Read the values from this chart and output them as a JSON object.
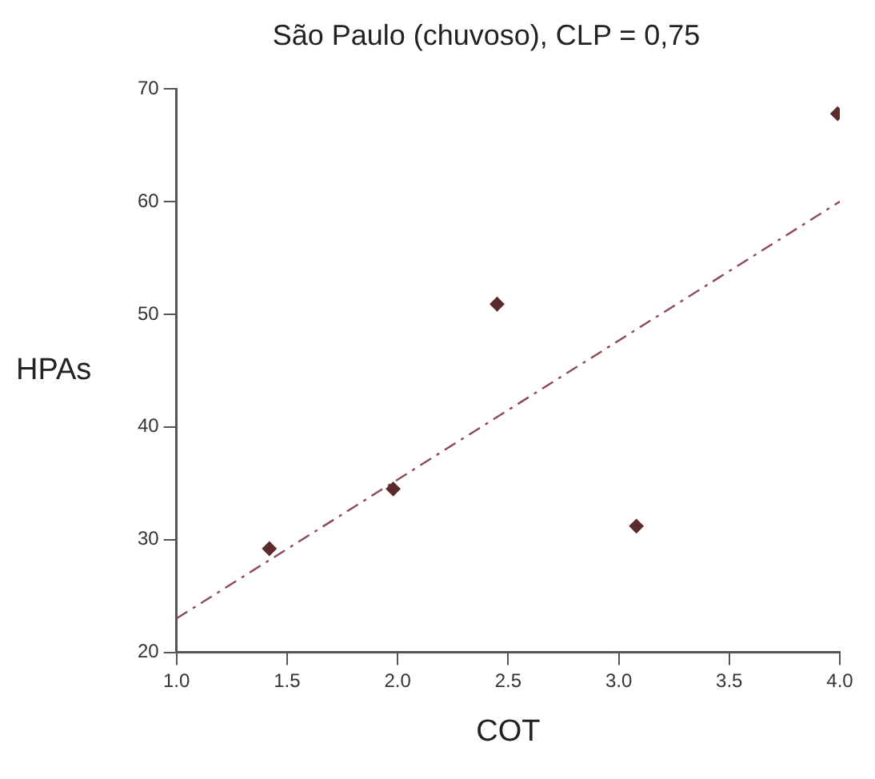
{
  "chart_data": {
    "type": "scatter",
    "title": "São Paulo (chuvoso), CLP = 0,75",
    "xlabel": "COT",
    "ylabel": "HPAs",
    "series": [
      {
        "color": "#5c2c2c",
        "x": [
          1.42,
          1.98,
          2.45,
          3.08,
          3.99
        ],
        "values": [
          29.2,
          34.5,
          50.9,
          31.2,
          67.8
        ]
      },
      {
        "type": "line",
        "color": "#8b4a55",
        "x": [
          1.0,
          4.0
        ],
        "values": [
          23,
          60
        ],
        "line_style": "dashed",
        "marker": "none"
      }
    ],
    "marker": "diamond",
    "xlim": [
      1.0,
      4.0
    ],
    "xticks": [
      {
        "value": 1.0,
        "label": "1.0"
      },
      {
        "value": 1.5,
        "label": "1.5"
      },
      {
        "value": 2.0,
        "label": "2.0"
      },
      {
        "value": 2.5,
        "label": "2.5"
      },
      {
        "value": 3.0,
        "label": "3.0"
      },
      {
        "value": 3.5,
        "label": "3.5"
      },
      {
        "value": 4.0,
        "label": "4.0"
      }
    ],
    "ylim": [
      20,
      70
    ],
    "yticks": [
      20,
      30,
      40,
      50,
      60,
      70
    ],
    "grid": false,
    "legend": false
  }
}
